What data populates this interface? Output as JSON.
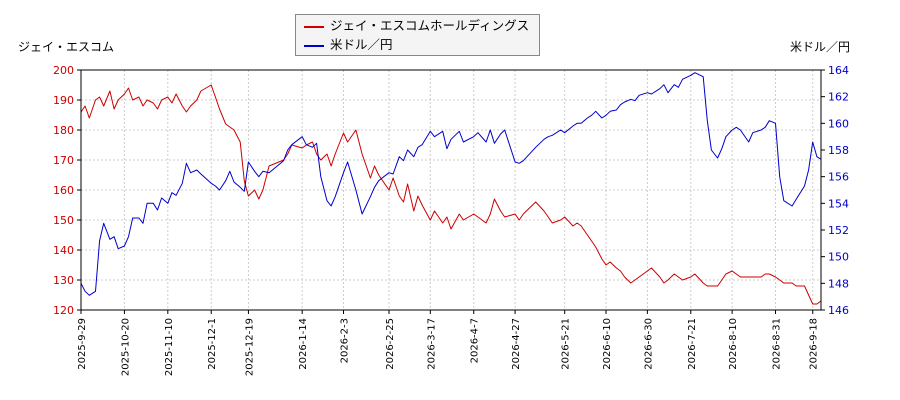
{
  "chart_data": {
    "type": "line",
    "left_axis_label": "ジェイ・エスコム",
    "right_axis_label": "米ドル／円",
    "y_left": {
      "min": 120,
      "max": 200,
      "ticks": [
        120,
        130,
        140,
        150,
        160,
        170,
        180,
        190,
        200
      ],
      "color": "#cc0000"
    },
    "y_right": {
      "min": 146,
      "max": 164,
      "ticks": [
        146,
        148,
        150,
        152,
        154,
        156,
        158,
        160,
        162,
        164
      ],
      "color": "#0000cc"
    },
    "x_start": "2025-09-29",
    "x_end": "2026-09-22",
    "x_ticks": [
      "2025-9-29",
      "2025-10-20",
      "2025-11-10",
      "2025-12-1",
      "2025-12-19",
      "2026-1-14",
      "2026-2-3",
      "2026-2-25",
      "2026-3-17",
      "2026-4-7",
      "2026-4-27",
      "2026-5-21",
      "2026-6-10",
      "2026-6-30",
      "2026-7-21",
      "2026-8-10",
      "2026-8-31",
      "2026-9-18"
    ],
    "grid": true,
    "legend_position": "top-center",
    "series": [
      {
        "name": "ジェイ・エスコムホールディングス",
        "axis": "left",
        "color": "#cc0000",
        "points": [
          [
            "2025-09-29",
            186
          ],
          [
            "2025-10-01",
            188
          ],
          [
            "2025-10-03",
            184
          ],
          [
            "2025-10-06",
            190
          ],
          [
            "2025-10-08",
            191
          ],
          [
            "2025-10-10",
            188
          ],
          [
            "2025-10-13",
            193
          ],
          [
            "2025-10-15",
            187
          ],
          [
            "2025-10-17",
            190
          ],
          [
            "2025-10-20",
            192
          ],
          [
            "2025-10-22",
            194
          ],
          [
            "2025-10-24",
            190
          ],
          [
            "2025-10-27",
            191
          ],
          [
            "2025-10-29",
            188
          ],
          [
            "2025-10-31",
            190
          ],
          [
            "2025-11-03",
            189
          ],
          [
            "2025-11-05",
            187
          ],
          [
            "2025-11-07",
            190
          ],
          [
            "2025-11-10",
            191
          ],
          [
            "2025-11-12",
            189
          ],
          [
            "2025-11-14",
            192
          ],
          [
            "2025-11-17",
            188
          ],
          [
            "2025-11-19",
            186
          ],
          [
            "2025-11-21",
            188
          ],
          [
            "2025-11-24",
            190
          ],
          [
            "2025-11-26",
            193
          ],
          [
            "2025-12-01",
            195
          ],
          [
            "2025-12-03",
            191
          ],
          [
            "2025-12-05",
            187
          ],
          [
            "2025-12-08",
            182
          ],
          [
            "2025-12-10",
            181
          ],
          [
            "2025-12-12",
            180
          ],
          [
            "2025-12-15",
            176
          ],
          [
            "2025-12-17",
            163
          ],
          [
            "2025-12-19",
            158
          ],
          [
            "2025-12-22",
            160
          ],
          [
            "2025-12-24",
            157
          ],
          [
            "2025-12-26",
            160
          ],
          [
            "2025-12-29",
            168
          ],
          [
            "2026-01-05",
            170
          ],
          [
            "2026-01-07",
            172
          ],
          [
            "2026-01-09",
            175
          ],
          [
            "2026-01-14",
            174
          ],
          [
            "2026-01-16",
            175
          ],
          [
            "2026-01-19",
            176
          ],
          [
            "2026-01-21",
            172
          ],
          [
            "2026-01-23",
            170
          ],
          [
            "2026-01-26",
            172
          ],
          [
            "2026-01-28",
            168
          ],
          [
            "2026-01-30",
            172
          ],
          [
            "2026-02-03",
            179
          ],
          [
            "2026-02-05",
            176
          ],
          [
            "2026-02-09",
            180
          ],
          [
            "2026-02-12",
            172
          ],
          [
            "2026-02-16",
            164
          ],
          [
            "2026-02-18",
            168
          ],
          [
            "2026-02-20",
            165
          ],
          [
            "2026-02-25",
            160
          ],
          [
            "2026-02-27",
            164
          ],
          [
            "2026-03-02",
            158
          ],
          [
            "2026-03-04",
            156
          ],
          [
            "2026-03-06",
            162
          ],
          [
            "2026-03-09",
            153
          ],
          [
            "2026-03-11",
            158
          ],
          [
            "2026-03-13",
            155
          ],
          [
            "2026-03-17",
            150
          ],
          [
            "2026-03-19",
            153
          ],
          [
            "2026-03-23",
            149
          ],
          [
            "2026-03-25",
            151
          ],
          [
            "2026-03-27",
            147
          ],
          [
            "2026-03-31",
            152
          ],
          [
            "2026-04-02",
            150
          ],
          [
            "2026-04-07",
            152
          ],
          [
            "2026-04-09",
            151
          ],
          [
            "2026-04-13",
            149
          ],
          [
            "2026-04-15",
            152
          ],
          [
            "2026-04-17",
            157
          ],
          [
            "2026-04-20",
            153
          ],
          [
            "2026-04-22",
            151
          ],
          [
            "2026-04-27",
            152
          ],
          [
            "2026-04-29",
            150
          ],
          [
            "2026-05-01",
            152
          ],
          [
            "2026-05-07",
            156
          ],
          [
            "2026-05-11",
            153
          ],
          [
            "2026-05-13",
            151
          ],
          [
            "2026-05-15",
            149
          ],
          [
            "2026-05-19",
            150
          ],
          [
            "2026-05-21",
            151
          ],
          [
            "2026-05-25",
            148
          ],
          [
            "2026-05-27",
            149
          ],
          [
            "2026-05-29",
            148
          ],
          [
            "2026-06-01",
            145
          ],
          [
            "2026-06-03",
            143
          ],
          [
            "2026-06-05",
            141
          ],
          [
            "2026-06-08",
            137
          ],
          [
            "2026-06-10",
            135
          ],
          [
            "2026-06-12",
            136
          ],
          [
            "2026-06-15",
            134
          ],
          [
            "2026-06-17",
            133
          ],
          [
            "2026-06-19",
            131
          ],
          [
            "2026-06-22",
            129
          ],
          [
            "2026-06-24",
            130
          ],
          [
            "2026-06-26",
            131
          ],
          [
            "2026-06-30",
            133
          ],
          [
            "2026-07-02",
            134
          ],
          [
            "2026-07-06",
            131
          ],
          [
            "2026-07-08",
            129
          ],
          [
            "2026-07-10",
            130
          ],
          [
            "2026-07-13",
            132
          ],
          [
            "2026-07-15",
            131
          ],
          [
            "2026-07-17",
            130
          ],
          [
            "2026-07-21",
            131
          ],
          [
            "2026-07-23",
            132
          ],
          [
            "2026-07-27",
            129
          ],
          [
            "2026-07-29",
            128
          ],
          [
            "2026-07-31",
            128
          ],
          [
            "2026-08-03",
            128
          ],
          [
            "2026-08-05",
            130
          ],
          [
            "2026-08-07",
            132
          ],
          [
            "2026-08-10",
            133
          ],
          [
            "2026-08-12",
            132
          ],
          [
            "2026-08-14",
            131
          ],
          [
            "2026-08-18",
            131
          ],
          [
            "2026-08-20",
            131
          ],
          [
            "2026-08-24",
            131
          ],
          [
            "2026-08-26",
            132
          ],
          [
            "2026-08-28",
            132
          ],
          [
            "2026-08-31",
            131
          ],
          [
            "2026-09-02",
            130
          ],
          [
            "2026-09-04",
            129
          ],
          [
            "2026-09-08",
            129
          ],
          [
            "2026-09-10",
            128
          ],
          [
            "2026-09-14",
            128
          ],
          [
            "2026-09-16",
            125
          ],
          [
            "2026-09-18",
            122
          ],
          [
            "2026-09-20",
            122
          ],
          [
            "2026-09-22",
            123
          ]
        ]
      },
      {
        "name": "米ドル／円",
        "axis": "right",
        "color": "#0000cc",
        "points": [
          [
            "2025-09-29",
            148.0
          ],
          [
            "2025-10-01",
            147.4
          ],
          [
            "2025-10-03",
            147.1
          ],
          [
            "2025-10-06",
            147.4
          ],
          [
            "2025-10-08",
            151.2
          ],
          [
            "2025-10-10",
            152.5
          ],
          [
            "2025-10-13",
            151.3
          ],
          [
            "2025-10-15",
            151.5
          ],
          [
            "2025-10-17",
            150.6
          ],
          [
            "2025-10-20",
            150.8
          ],
          [
            "2025-10-22",
            151.5
          ],
          [
            "2025-10-24",
            152.9
          ],
          [
            "2025-10-27",
            152.9
          ],
          [
            "2025-10-29",
            152.5
          ],
          [
            "2025-10-31",
            154.0
          ],
          [
            "2025-11-03",
            154.0
          ],
          [
            "2025-11-05",
            153.5
          ],
          [
            "2025-11-07",
            154.4
          ],
          [
            "2025-11-10",
            154.0
          ],
          [
            "2025-11-12",
            154.8
          ],
          [
            "2025-11-14",
            154.6
          ],
          [
            "2025-11-17",
            155.5
          ],
          [
            "2025-11-19",
            157.0
          ],
          [
            "2025-11-21",
            156.3
          ],
          [
            "2025-11-24",
            156.5
          ],
          [
            "2025-11-26",
            156.2
          ],
          [
            "2025-12-01",
            155.5
          ],
          [
            "2025-12-03",
            155.3
          ],
          [
            "2025-12-05",
            155.0
          ],
          [
            "2025-12-08",
            155.7
          ],
          [
            "2025-12-10",
            156.4
          ],
          [
            "2025-12-12",
            155.6
          ],
          [
            "2025-12-15",
            155.2
          ],
          [
            "2025-12-17",
            154.9
          ],
          [
            "2025-12-19",
            157.1
          ],
          [
            "2025-12-22",
            156.4
          ],
          [
            "2025-12-24",
            156.0
          ],
          [
            "2025-12-26",
            156.4
          ],
          [
            "2025-12-29",
            156.3
          ],
          [
            "2026-01-05",
            157.2
          ],
          [
            "2026-01-07",
            158.0
          ],
          [
            "2026-01-09",
            158.4
          ],
          [
            "2026-01-14",
            159.0
          ],
          [
            "2026-01-16",
            158.4
          ],
          [
            "2026-01-19",
            158.2
          ],
          [
            "2026-01-21",
            158.5
          ],
          [
            "2026-01-23",
            156.0
          ],
          [
            "2026-01-26",
            154.2
          ],
          [
            "2026-01-28",
            153.8
          ],
          [
            "2026-01-30",
            154.5
          ],
          [
            "2026-02-03",
            156.3
          ],
          [
            "2026-02-05",
            157.1
          ],
          [
            "2026-02-09",
            155.0
          ],
          [
            "2026-02-12",
            153.2
          ],
          [
            "2026-02-16",
            154.5
          ],
          [
            "2026-02-18",
            155.2
          ],
          [
            "2026-02-20",
            155.7
          ],
          [
            "2026-02-25",
            156.3
          ],
          [
            "2026-02-27",
            156.2
          ],
          [
            "2026-03-02",
            157.5
          ],
          [
            "2026-03-04",
            157.2
          ],
          [
            "2026-03-06",
            158.0
          ],
          [
            "2026-03-09",
            157.5
          ],
          [
            "2026-03-11",
            158.2
          ],
          [
            "2026-03-13",
            158.4
          ],
          [
            "2026-03-17",
            159.4
          ],
          [
            "2026-03-19",
            159.0
          ],
          [
            "2026-03-23",
            159.4
          ],
          [
            "2026-03-25",
            158.1
          ],
          [
            "2026-03-27",
            158.8
          ],
          [
            "2026-03-31",
            159.4
          ],
          [
            "2026-04-02",
            158.6
          ],
          [
            "2026-04-07",
            159.0
          ],
          [
            "2026-04-09",
            159.3
          ],
          [
            "2026-04-13",
            158.6
          ],
          [
            "2026-04-15",
            159.5
          ],
          [
            "2026-04-17",
            158.5
          ],
          [
            "2026-04-20",
            159.2
          ],
          [
            "2026-04-22",
            159.5
          ],
          [
            "2026-04-27",
            157.1
          ],
          [
            "2026-04-29",
            157.0
          ],
          [
            "2026-05-01",
            157.2
          ],
          [
            "2026-05-07",
            158.2
          ],
          [
            "2026-05-11",
            158.8
          ],
          [
            "2026-05-13",
            159.0
          ],
          [
            "2026-05-15",
            159.1
          ],
          [
            "2026-05-19",
            159.5
          ],
          [
            "2026-05-21",
            159.3
          ],
          [
            "2026-05-25",
            159.8
          ],
          [
            "2026-05-27",
            160.0
          ],
          [
            "2026-05-29",
            160.0
          ],
          [
            "2026-06-01",
            160.4
          ],
          [
            "2026-06-03",
            160.6
          ],
          [
            "2026-06-05",
            160.9
          ],
          [
            "2026-06-08",
            160.4
          ],
          [
            "2026-06-10",
            160.6
          ],
          [
            "2026-06-12",
            160.9
          ],
          [
            "2026-06-15",
            161.0
          ],
          [
            "2026-06-17",
            161.4
          ],
          [
            "2026-06-19",
            161.6
          ],
          [
            "2026-06-22",
            161.8
          ],
          [
            "2026-06-24",
            161.7
          ],
          [
            "2026-06-26",
            162.1
          ],
          [
            "2026-06-30",
            162.3
          ],
          [
            "2026-07-02",
            162.2
          ],
          [
            "2026-07-06",
            162.6
          ],
          [
            "2026-07-08",
            162.9
          ],
          [
            "2026-07-10",
            162.3
          ],
          [
            "2026-07-13",
            162.9
          ],
          [
            "2026-07-15",
            162.7
          ],
          [
            "2026-07-17",
            163.3
          ],
          [
            "2026-07-21",
            163.6
          ],
          [
            "2026-07-23",
            163.8
          ],
          [
            "2026-07-27",
            163.5
          ],
          [
            "2026-07-29",
            160.2
          ],
          [
            "2026-07-31",
            158.0
          ],
          [
            "2026-08-03",
            157.4
          ],
          [
            "2026-08-05",
            158.1
          ],
          [
            "2026-08-07",
            159.0
          ],
          [
            "2026-08-10",
            159.5
          ],
          [
            "2026-08-12",
            159.7
          ],
          [
            "2026-08-14",
            159.5
          ],
          [
            "2026-08-18",
            158.6
          ],
          [
            "2026-08-20",
            159.3
          ],
          [
            "2026-08-24",
            159.5
          ],
          [
            "2026-08-26",
            159.7
          ],
          [
            "2026-08-28",
            160.2
          ],
          [
            "2026-08-31",
            160.0
          ],
          [
            "2026-09-02",
            156.0
          ],
          [
            "2026-09-04",
            154.2
          ],
          [
            "2026-09-08",
            153.8
          ],
          [
            "2026-09-10",
            154.3
          ],
          [
            "2026-09-14",
            155.3
          ],
          [
            "2026-09-16",
            156.5
          ],
          [
            "2026-09-18",
            158.6
          ],
          [
            "2026-09-20",
            157.5
          ],
          [
            "2026-09-22",
            157.3
          ]
        ]
      }
    ]
  }
}
